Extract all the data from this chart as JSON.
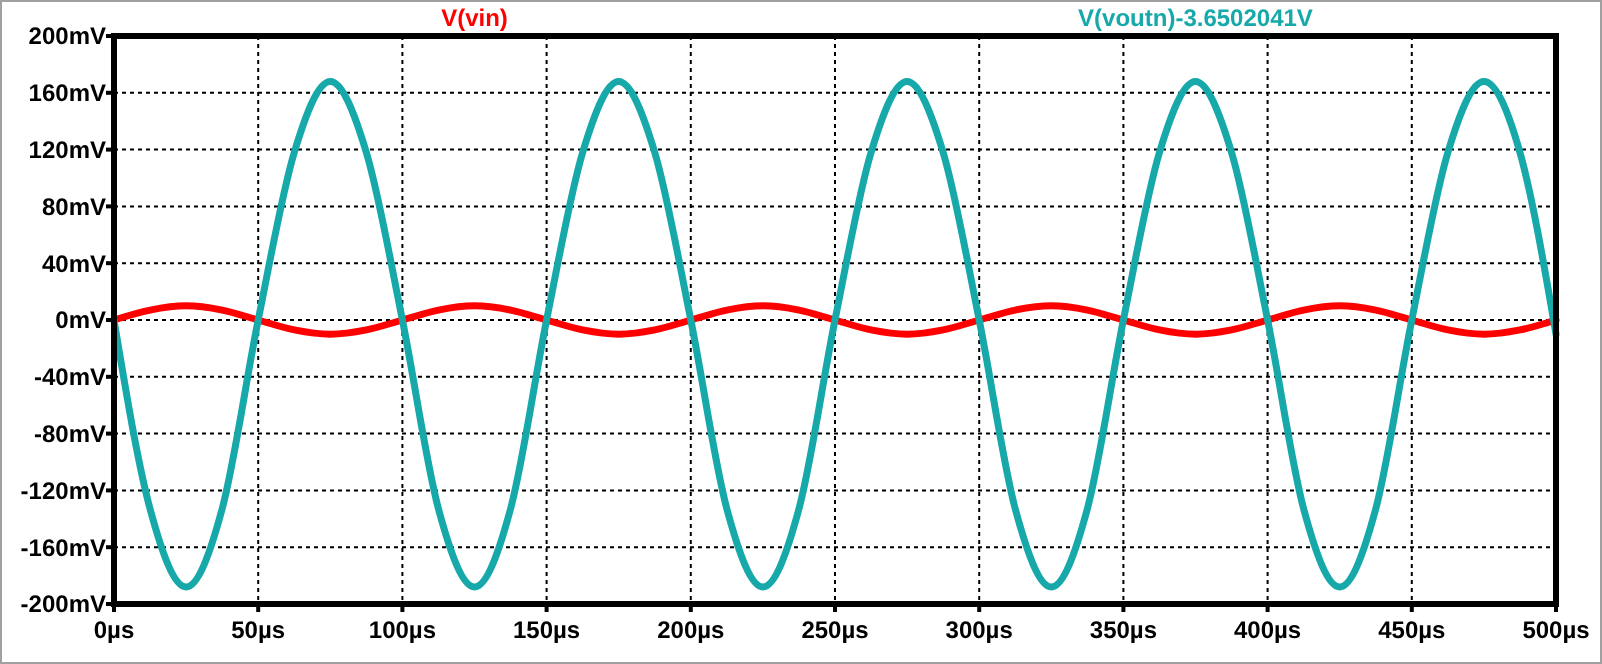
{
  "chart_data": {
    "type": "line",
    "x": [
      0,
      12.5,
      25,
      37.5,
      50,
      62.5,
      75,
      87.5,
      100,
      112.5,
      125,
      137.5,
      150,
      162.5,
      175,
      187.5,
      200,
      212.5,
      225,
      237.5,
      250,
      262.5,
      275,
      287.5,
      300,
      312.5,
      325,
      337.5,
      350,
      362.5,
      375,
      387.5,
      400,
      412.5,
      425,
      437.5,
      450,
      462.5,
      475,
      487.5,
      500
    ],
    "series": [
      {
        "name": "V(vin)",
        "color": "#ff0000",
        "values": [
          0,
          7,
          10,
          7,
          0,
          -7,
          -10,
          -7,
          0,
          7,
          10,
          7,
          0,
          -7,
          -10,
          -7,
          0,
          7,
          10,
          7,
          0,
          -7,
          -10,
          -7,
          0,
          7,
          10,
          7,
          0,
          -7,
          -10,
          -7,
          0,
          7,
          10,
          7,
          0,
          -7,
          -10,
          -7,
          0
        ]
      },
      {
        "name": "V(voutn)-3.6502041V",
        "color": "#17a9a9",
        "values": [
          0,
          -133,
          -188,
          -133,
          0,
          118,
          168,
          118,
          0,
          -133,
          -188,
          -133,
          0,
          118,
          168,
          118,
          0,
          -133,
          -188,
          -133,
          0,
          118,
          168,
          118,
          0,
          -133,
          -188,
          -133,
          0,
          118,
          168,
          118,
          0,
          -133,
          -188,
          -133,
          0,
          118,
          168,
          118,
          -10
        ]
      }
    ],
    "xlim": [
      0,
      500
    ],
    "xticks": [
      {
        "value": 0,
        "label": "0µs"
      },
      {
        "value": 50,
        "label": "50µs"
      },
      {
        "value": 100,
        "label": "100µs"
      },
      {
        "value": 150,
        "label": "150µs"
      },
      {
        "value": 200,
        "label": "200µs"
      },
      {
        "value": 250,
        "label": "250µs"
      },
      {
        "value": 300,
        "label": "300µs"
      },
      {
        "value": 350,
        "label": "350µs"
      },
      {
        "value": 400,
        "label": "400µs"
      },
      {
        "value": 450,
        "label": "450µs"
      },
      {
        "value": 500,
        "label": "500µs"
      }
    ],
    "ylim": [
      -200,
      200
    ],
    "yticks": [
      {
        "value": -200,
        "label": "-200mV"
      },
      {
        "value": -160,
        "label": "-160mV"
      },
      {
        "value": -120,
        "label": "-120mV"
      },
      {
        "value": -80,
        "label": "-80mV"
      },
      {
        "value": -40,
        "label": "-40mV"
      },
      {
        "value": 0,
        "label": "0mV"
      },
      {
        "value": 40,
        "label": "40mV"
      },
      {
        "value": 80,
        "label": "80mV"
      },
      {
        "value": 120,
        "label": "120mV"
      },
      {
        "value": 160,
        "label": "160mV"
      },
      {
        "value": 200,
        "label": "200mV"
      }
    ],
    "grid": true,
    "legend": "top",
    "line_style": "solid"
  }
}
